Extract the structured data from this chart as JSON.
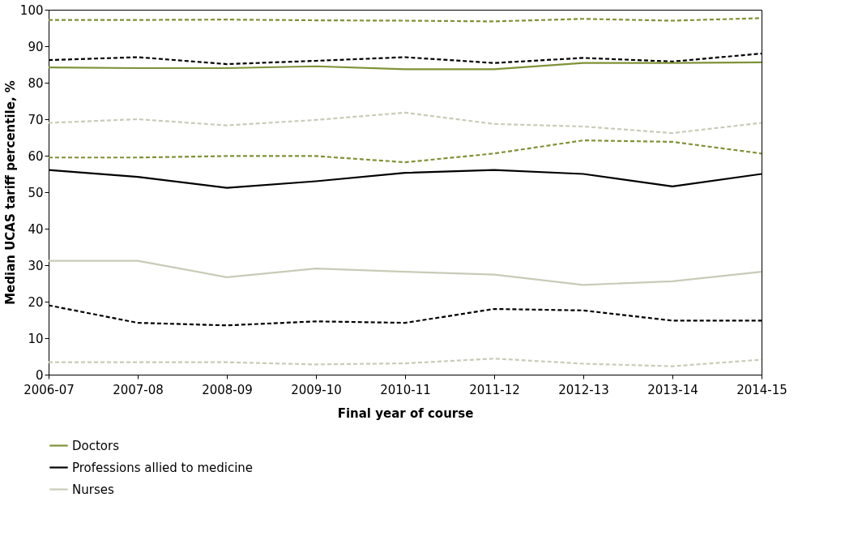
{
  "chart_data": {
    "type": "line",
    "xlabel": "Final year of course",
    "ylabel": "Median UCAS tariff percentile, %",
    "categories": [
      "2006-07",
      "2007-08",
      "2008-09",
      "2009-10",
      "2010-11",
      "2011-12",
      "2012-13",
      "2013-14",
      "2014-15"
    ],
    "ylim": [
      0,
      100
    ],
    "yticks": [
      0,
      10,
      20,
      30,
      40,
      50,
      60,
      70,
      80,
      90,
      100
    ],
    "grid": false,
    "legend": "bottom",
    "marker": "none",
    "series": [
      {
        "color": "#7f9239",
        "line_style": "dashed",
        "values": [
          97.2,
          97.2,
          97.3,
          97.1,
          97.0,
          96.8,
          97.5,
          97.0,
          97.7
        ]
      },
      {
        "color": "#000000",
        "line_style": "dashed",
        "values": [
          86.2,
          87.0,
          85.1,
          86.0,
          87.0,
          85.4,
          86.8,
          85.8,
          88.0
        ]
      },
      {
        "name": "Doctors",
        "color": "#7f9239",
        "line_style": "solid",
        "values": [
          84.2,
          84.0,
          84.0,
          84.5,
          83.7,
          83.7,
          85.4,
          85.4,
          85.6
        ]
      },
      {
        "color": "#c9cbb8",
        "line_style": "dashed",
        "values": [
          69.0,
          70.0,
          68.3,
          69.8,
          71.8,
          68.7,
          68.0,
          66.2,
          69.0
        ]
      },
      {
        "color": "#7f9239",
        "line_style": "dashed",
        "values": [
          59.5,
          59.5,
          59.9,
          59.9,
          58.2,
          60.6,
          64.2,
          63.8,
          60.6
        ]
      },
      {
        "name": "Professions allied to medicine",
        "color": "#000000",
        "line_style": "solid",
        "values": [
          56.1,
          54.2,
          51.2,
          53.0,
          55.3,
          56.1,
          55.0,
          51.6,
          55.0
        ]
      },
      {
        "name": "Nurses",
        "color": "#c9cbb8",
        "line_style": "solid",
        "values": [
          31.2,
          31.2,
          26.7,
          29.1,
          28.2,
          27.4,
          24.6,
          25.6,
          28.2
        ]
      },
      {
        "color": "#000000",
        "line_style": "dashed",
        "values": [
          19.0,
          14.2,
          13.5,
          14.6,
          14.2,
          18.0,
          17.6,
          14.8,
          14.8
        ]
      },
      {
        "color": "#c9cbb8",
        "line_style": "dashed",
        "values": [
          3.4,
          3.4,
          3.4,
          2.8,
          3.1,
          4.4,
          3.0,
          2.3,
          4.1
        ]
      }
    ]
  }
}
